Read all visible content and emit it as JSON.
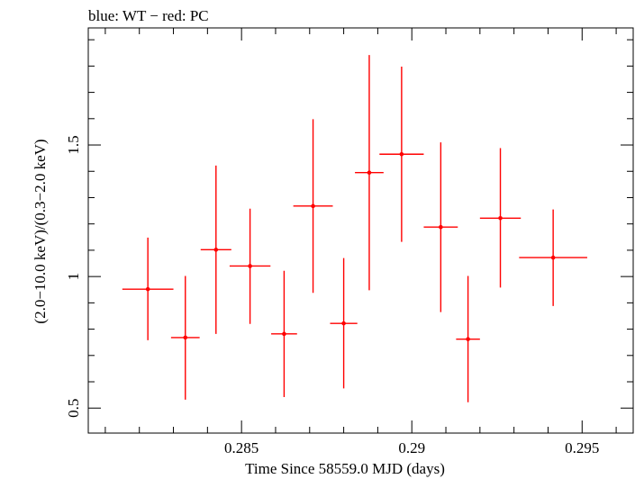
{
  "chart_data": {
    "type": "scatter",
    "title": "blue: WT − red: PC",
    "xlabel": "Time Since 58559.0 MJD (days)",
    "ylabel": "(2.0−10.0 keV)/(0.3−2.0 keV)",
    "xlim": [
      0.2805,
      0.2965
    ],
    "ylim": [
      0.405,
      1.945
    ],
    "x_ticks": [
      {
        "value": 0.285,
        "label": "0.285"
      },
      {
        "value": 0.29,
        "label": "0.29"
      },
      {
        "value": 0.295,
        "label": "0.295"
      }
    ],
    "y_ticks": [
      {
        "value": 0.5,
        "label": "0.5"
      },
      {
        "value": 1.0,
        "label": "1"
      },
      {
        "value": 1.5,
        "label": "1.5"
      }
    ],
    "series": [
      {
        "name": "PC",
        "color": "#ff0000",
        "points": [
          {
            "x": 0.28225,
            "xerr": 0.00075,
            "y": 0.952,
            "ylo": 0.758,
            "yhi": 1.148
          },
          {
            "x": 0.28335,
            "xerr": 0.00042,
            "y": 0.768,
            "ylo": 0.532,
            "yhi": 1.002
          },
          {
            "x": 0.28425,
            "xerr": 0.00045,
            "y": 1.102,
            "ylo": 0.782,
            "yhi": 1.422
          },
          {
            "x": 0.28525,
            "xerr": 0.0006,
            "y": 1.04,
            "ylo": 0.82,
            "yhi": 1.258
          },
          {
            "x": 0.28625,
            "xerr": 0.00038,
            "y": 0.782,
            "ylo": 0.542,
            "yhi": 1.022
          },
          {
            "x": 0.2871,
            "xerr": 0.00058,
            "y": 1.268,
            "ylo": 0.938,
            "yhi": 1.598
          },
          {
            "x": 0.288,
            "xerr": 0.0004,
            "y": 0.822,
            "ylo": 0.575,
            "yhi": 1.07
          },
          {
            "x": 0.28875,
            "xerr": 0.00042,
            "y": 1.395,
            "ylo": 0.948,
            "yhi": 1.842
          },
          {
            "x": 0.2897,
            "xerr": 0.00065,
            "y": 1.465,
            "ylo": 1.132,
            "yhi": 1.798
          },
          {
            "x": 0.29085,
            "xerr": 0.0005,
            "y": 1.188,
            "ylo": 0.865,
            "yhi": 1.51
          },
          {
            "x": 0.29165,
            "xerr": 0.00035,
            "y": 0.762,
            "ylo": 0.522,
            "yhi": 1.002
          },
          {
            "x": 0.2926,
            "xerr": 0.0006,
            "y": 1.222,
            "ylo": 0.958,
            "yhi": 1.488
          },
          {
            "x": 0.29415,
            "xerr": 0.001,
            "y": 1.072,
            "ylo": 0.888,
            "yhi": 1.255
          }
        ]
      }
    ]
  }
}
